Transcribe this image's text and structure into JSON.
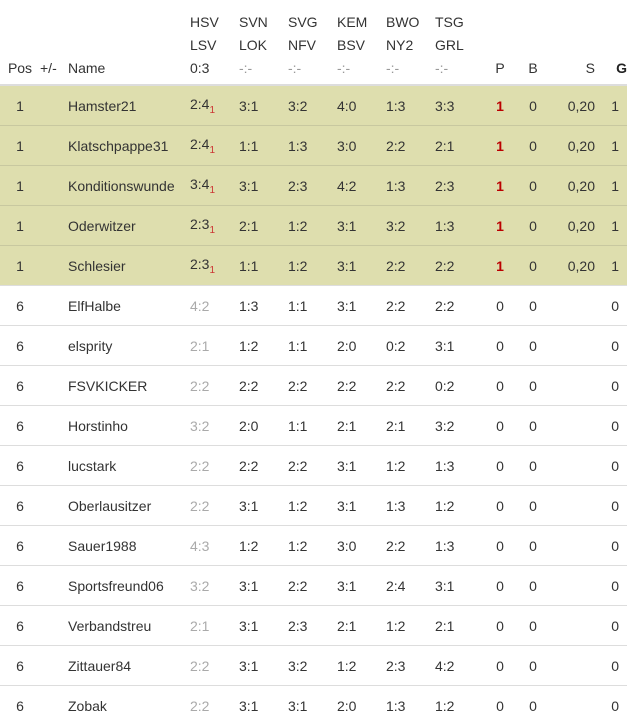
{
  "headers": {
    "pos": "Pos",
    "diff": "+/-",
    "name": "Name",
    "p": "P",
    "b": "B",
    "s": "S",
    "g": "G"
  },
  "matches": [
    {
      "home": "HSV",
      "away": "LSV",
      "result": "0:3"
    },
    {
      "home": "SVN",
      "away": "LOK",
      "result": "-:-"
    },
    {
      "home": "SVG",
      "away": "NFV",
      "result": "-:-"
    },
    {
      "home": "KEM",
      "away": "BSV",
      "result": "-:-"
    },
    {
      "home": "BWO",
      "away": "NY2",
      "result": "-:-"
    },
    {
      "home": "TSG",
      "away": "GRL",
      "result": "-:-"
    }
  ],
  "colors": {
    "highlight": "#dedeae",
    "points_red": "#bb0000"
  },
  "rows": [
    {
      "pos": "1",
      "name": "Hamster21",
      "tips": [
        "2:4",
        "3:1",
        "3:2",
        "4:0",
        "1:3",
        "3:3"
      ],
      "tip1_points": "1",
      "p": "1",
      "b": "0",
      "s": "0,20",
      "g": "1",
      "highlight": true
    },
    {
      "pos": "1",
      "name": "Klatschpappe31",
      "tips": [
        "2:4",
        "1:1",
        "1:3",
        "3:0",
        "2:2",
        "2:1"
      ],
      "tip1_points": "1",
      "p": "1",
      "b": "0",
      "s": "0,20",
      "g": "1",
      "highlight": true
    },
    {
      "pos": "1",
      "name": "Konditionswunde",
      "tips": [
        "3:4",
        "3:1",
        "2:3",
        "4:2",
        "1:3",
        "2:3"
      ],
      "tip1_points": "1",
      "p": "1",
      "b": "0",
      "s": "0,20",
      "g": "1",
      "highlight": true
    },
    {
      "pos": "1",
      "name": "Oderwitzer",
      "tips": [
        "2:3",
        "2:1",
        "1:2",
        "3:1",
        "3:2",
        "1:3"
      ],
      "tip1_points": "1",
      "p": "1",
      "b": "0",
      "s": "0,20",
      "g": "1",
      "highlight": true
    },
    {
      "pos": "1",
      "name": "Schlesier",
      "tips": [
        "2:3",
        "1:1",
        "1:2",
        "3:1",
        "2:2",
        "2:2"
      ],
      "tip1_points": "1",
      "p": "1",
      "b": "0",
      "s": "0,20",
      "g": "1",
      "highlight": true
    },
    {
      "pos": "6",
      "name": "ElfHalbe",
      "tips": [
        "4:2",
        "1:3",
        "1:1",
        "3:1",
        "2:2",
        "2:2"
      ],
      "p": "0",
      "b": "0",
      "s": "",
      "g": "0"
    },
    {
      "pos": "6",
      "name": "elsprity",
      "tips": [
        "2:1",
        "1:2",
        "1:1",
        "2:0",
        "0:2",
        "3:1"
      ],
      "p": "0",
      "b": "0",
      "s": "",
      "g": "0"
    },
    {
      "pos": "6",
      "name": "FSVKICKER",
      "tips": [
        "2:2",
        "2:2",
        "2:2",
        "2:2",
        "2:2",
        "0:2"
      ],
      "p": "0",
      "b": "0",
      "s": "",
      "g": "0"
    },
    {
      "pos": "6",
      "name": "Horstinho",
      "tips": [
        "3:2",
        "2:0",
        "1:1",
        "2:1",
        "2:1",
        "3:2"
      ],
      "p": "0",
      "b": "0",
      "s": "",
      "g": "0"
    },
    {
      "pos": "6",
      "name": "lucstark",
      "tips": [
        "2:2",
        "2:2",
        "2:2",
        "3:1",
        "1:2",
        "1:3"
      ],
      "p": "0",
      "b": "0",
      "s": "",
      "g": "0"
    },
    {
      "pos": "6",
      "name": "Oberlausitzer",
      "tips": [
        "2:2",
        "3:1",
        "1:2",
        "3:1",
        "1:3",
        "1:2"
      ],
      "p": "0",
      "b": "0",
      "s": "",
      "g": "0"
    },
    {
      "pos": "6",
      "name": "Sauer1988",
      "tips": [
        "4:3",
        "1:2",
        "1:2",
        "3:0",
        "2:2",
        "1:3"
      ],
      "p": "0",
      "b": "0",
      "s": "",
      "g": "0"
    },
    {
      "pos": "6",
      "name": "Sportsfreund06",
      "tips": [
        "3:2",
        "3:1",
        "2:2",
        "3:1",
        "2:4",
        "3:1"
      ],
      "p": "0",
      "b": "0",
      "s": "",
      "g": "0"
    },
    {
      "pos": "6",
      "name": "Verbandstreu",
      "tips": [
        "2:1",
        "3:1",
        "2:3",
        "2:1",
        "1:2",
        "2:1"
      ],
      "p": "0",
      "b": "0",
      "s": "",
      "g": "0"
    },
    {
      "pos": "6",
      "name": "Zittauer84",
      "tips": [
        "2:2",
        "3:1",
        "3:2",
        "1:2",
        "2:3",
        "4:2"
      ],
      "p": "0",
      "b": "0",
      "s": "",
      "g": "0"
    },
    {
      "pos": "6",
      "name": "Zobak",
      "tips": [
        "2:2",
        "3:1",
        "3:1",
        "2:0",
        "1:3",
        "1:2"
      ],
      "p": "0",
      "b": "0",
      "s": "",
      "g": "0"
    }
  ]
}
